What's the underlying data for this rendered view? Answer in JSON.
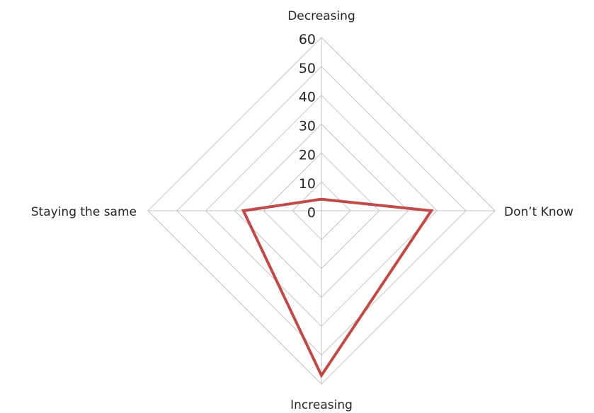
{
  "chart_data": {
    "type": "radar",
    "categories": [
      "Decreasing",
      "Don’t Know",
      "Increasing",
      "Staying the same"
    ],
    "series": [
      {
        "values": [
          4,
          38,
          57,
          27
        ],
        "color": "#be4b48"
      }
    ],
    "rlim": [
      0,
      60
    ],
    "ticks": [
      "0",
      "10",
      "20",
      "30",
      "40",
      "50",
      "60"
    ],
    "grid": true,
    "legend": "none"
  }
}
